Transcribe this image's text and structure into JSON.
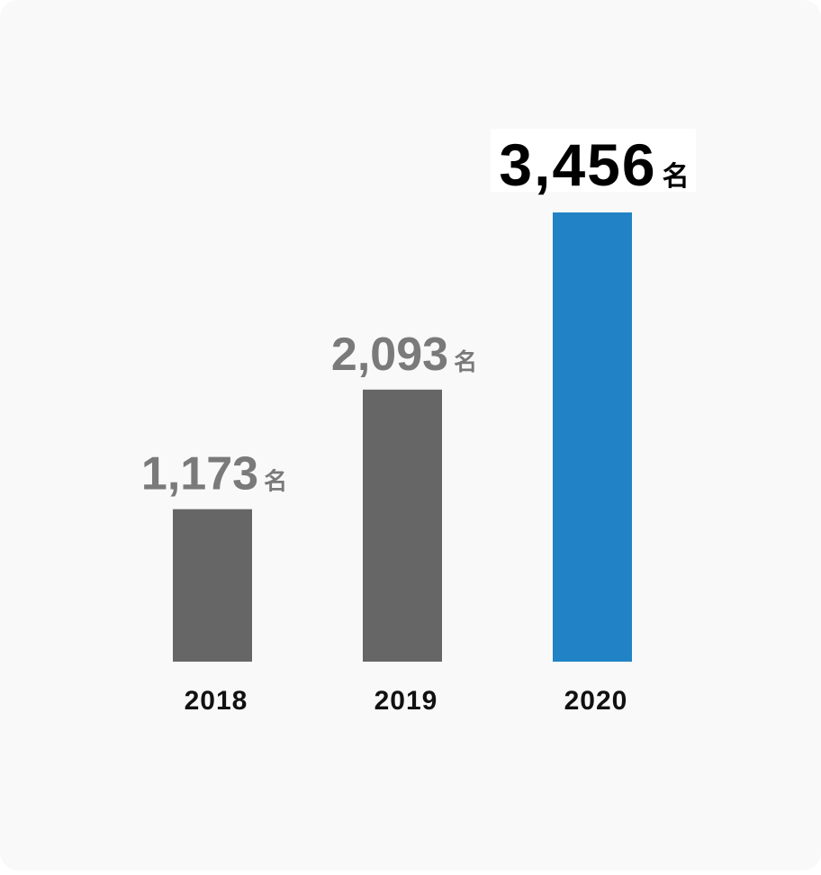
{
  "chart_data": {
    "type": "bar",
    "categories": [
      "2018",
      "2019",
      "2020"
    ],
    "values": [
      1173,
      2093,
      3456
    ],
    "value_labels": [
      "1,173",
      "2,093",
      "3,456"
    ],
    "unit": "名",
    "colors": [
      "#666666",
      "#666666",
      "#2183c6"
    ]
  }
}
